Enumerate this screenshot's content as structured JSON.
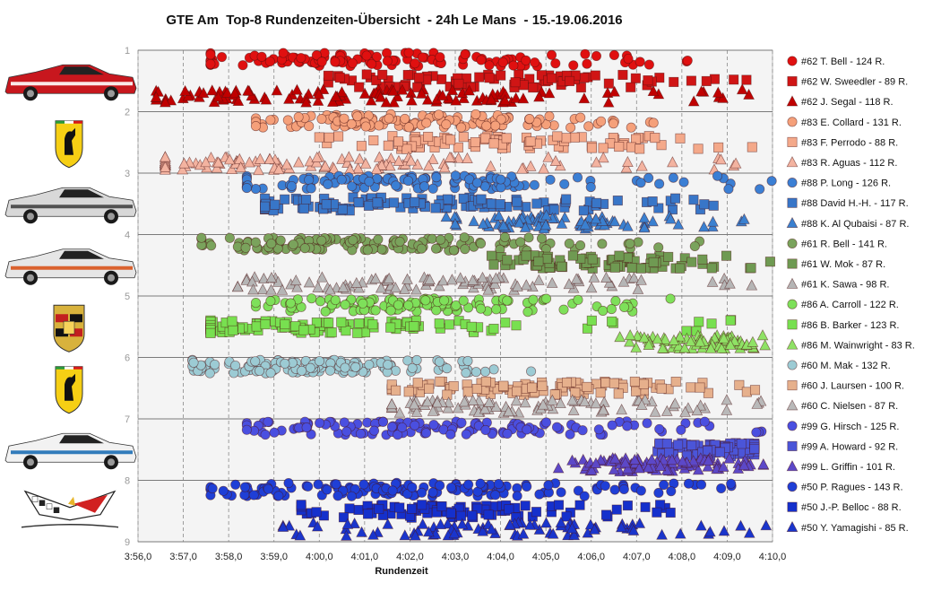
{
  "chart_data": {
    "type": "scatter",
    "title": "GTE Am  Top-8 Rundenzeiten-Übersicht  - 24h Le Mans  - 15.-19.06.2016",
    "xlabel": "Rundenzeit",
    "ylabel": "",
    "x_ticks": [
      "3:56,0",
      "3:57,0",
      "3:58,0",
      "3:59,0",
      "4:00,0",
      "4:01,0",
      "4:02,0",
      "4:03,0",
      "4:04,0",
      "4:05,0",
      "4:06,0",
      "4:07,0",
      "4:08,0",
      "4:09,0",
      "4:10,0"
    ],
    "xlim": [
      "3:56,0",
      "4:10,0"
    ],
    "y_ticks": [
      "1",
      "2",
      "3",
      "4",
      "5",
      "6",
      "7",
      "8",
      "9"
    ],
    "ylim": [
      1,
      9
    ],
    "grid": {
      "vertical": "dashed",
      "horizontal": "solid"
    },
    "legend_position": "right",
    "series": [
      {
        "name": "#62 T. Bell - 124 R.",
        "marker": "circle",
        "color": "#e01010",
        "row": 1.15,
        "xmin": "3:57,6",
        "xmax": "4:08,6",
        "count": 124,
        "peak": "4:01,0"
      },
      {
        "name": "#62 W. Sweedler - 89 R.",
        "marker": "square",
        "color": "#d01515",
        "row": 1.5,
        "xmin": "4:00,2",
        "xmax": "4:09,8",
        "count": 89,
        "peak": "4:03,5"
      },
      {
        "name": "#62 J. Segal - 118 R.",
        "marker": "triangle",
        "color": "#c00000",
        "row": 1.75,
        "xmin": "3:56,4",
        "xmax": "4:09,6",
        "count": 118,
        "peak": "4:00,5"
      },
      {
        "name": "#83 E. Collard - 131 R.",
        "marker": "circle",
        "color": "#f5a07a",
        "row": 2.15,
        "xmin": "3:58,6",
        "xmax": "4:08,2",
        "count": 131,
        "peak": "4:02,0"
      },
      {
        "name": "#83 F. Perrodo - 88 R.",
        "marker": "square",
        "color": "#f4a98a",
        "row": 2.5,
        "xmin": "4:00,0",
        "xmax": "4:09,8",
        "count": 88,
        "peak": "4:03,5"
      },
      {
        "name": "#83 R. Aguas - 112 R.",
        "marker": "triangle",
        "color": "#f3b3a0",
        "row": 2.85,
        "xmin": "3:56,6",
        "xmax": "4:09,6",
        "count": 112,
        "peak": "3:59,5"
      },
      {
        "name": "#88 P. Long - 126 R.",
        "marker": "circle",
        "color": "#3b7fd4",
        "row": 3.15,
        "xmin": "3:58,4",
        "xmax": "4:10,0",
        "count": 126,
        "peak": "4:01,5"
      },
      {
        "name": "#88 David H.-H. - 117 R.",
        "marker": "square",
        "color": "#3876c8",
        "row": 3.5,
        "xmin": "3:58,8",
        "xmax": "4:09,8",
        "count": 117,
        "peak": "4:01,5"
      },
      {
        "name": "#88 K. Al Qubaisi - 87 R.",
        "marker": "triangle",
        "color": "#3a80d0",
        "row": 3.8,
        "xmin": "4:02,8",
        "xmax": "4:10,0",
        "count": 87,
        "peak": "4:05,0"
      },
      {
        "name": "#61 R. Bell - 141 R.",
        "marker": "circle",
        "color": "#7aa35c",
        "row": 4.15,
        "xmin": "3:57,4",
        "xmax": "4:08,6",
        "count": 141,
        "peak": "4:01,0"
      },
      {
        "name": "#61 W. Mok - 87 R.",
        "marker": "square",
        "color": "#6f9a52",
        "row": 4.45,
        "xmin": "4:03,8",
        "xmax": "4:10,0",
        "count": 87,
        "peak": "4:06,5"
      },
      {
        "name": "#61 K. Sawa - 98 R.",
        "marker": "triangle",
        "color": "#b5b5b5",
        "row": 4.8,
        "xmin": "3:58,2",
        "xmax": "4:09,8",
        "count": 98,
        "peak": "4:02,5"
      },
      {
        "name": "#86 A. Carroll - 122 R.",
        "marker": "circle",
        "color": "#7ee05a",
        "row": 5.15,
        "xmin": "3:58,6",
        "xmax": "4:07,8",
        "count": 122,
        "peak": "4:02,0"
      },
      {
        "name": "#86 B. Barker - 123 R.",
        "marker": "square",
        "color": "#78e050",
        "row": 5.5,
        "xmin": "3:57,6",
        "xmax": "4:09,2",
        "count": 123,
        "peak": "3:59,5"
      },
      {
        "name": "#86 M. Wainwright - 83 R.",
        "marker": "triangle",
        "color": "#8fe265",
        "row": 5.75,
        "xmin": "4:06,6",
        "xmax": "4:10,0",
        "count": 83,
        "peak": "4:08,5"
      },
      {
        "name": "#60 M. Mak - 132 R.",
        "marker": "circle",
        "color": "#9ccbd4",
        "row": 6.15,
        "xmin": "3:57,2",
        "xmax": "4:04,8",
        "count": 132,
        "peak": "3:59,5"
      },
      {
        "name": "#60 J. Laursen - 100 R.",
        "marker": "square",
        "color": "#e6b08c",
        "row": 6.5,
        "xmin": "4:01,6",
        "xmax": "4:10,0",
        "count": 100,
        "peak": "4:04,5"
      },
      {
        "name": "#60 C. Nielsen - 87 R.",
        "marker": "triangle",
        "color": "#b9b9b9",
        "row": 6.8,
        "xmin": "4:01,6",
        "xmax": "4:09,8",
        "count": 87,
        "peak": "4:04,0"
      },
      {
        "name": "#99 G. Hirsch - 125 R.",
        "marker": "circle",
        "color": "#4a4fe0",
        "row": 7.15,
        "xmin": "3:58,4",
        "xmax": "4:10,0",
        "count": 125,
        "peak": "4:02,5"
      },
      {
        "name": "#99 A. Howard - 92 R.",
        "marker": "square",
        "color": "#4b55d8",
        "row": 7.5,
        "xmin": "4:07,4",
        "xmax": "4:09,6",
        "count": 92,
        "peak": "4:09,0"
      },
      {
        "name": "#99 L. Griffin - 101 R.",
        "marker": "triangle",
        "color": "#5c48c8",
        "row": 7.75,
        "xmin": "4:05,2",
        "xmax": "4:09,8",
        "count": 101,
        "peak": "4:07,5"
      },
      {
        "name": "#50 P. Ragues - 143 R.",
        "marker": "circle",
        "color": "#1f3fd6",
        "row": 8.15,
        "xmin": "3:57,6",
        "xmax": "4:09,6",
        "count": 143,
        "peak": "4:01,5"
      },
      {
        "name": "#50 J.-P. Belloc - 88 R.",
        "marker": "square",
        "color": "#1530cc",
        "row": 8.5,
        "xmin": "3:59,6",
        "xmax": "4:09,8",
        "count": 88,
        "peak": "4:03,0"
      },
      {
        "name": "#50 Y. Yamagishi - 85 R.",
        "marker": "triangle",
        "color": "#1a35cc",
        "row": 8.8,
        "xmin": "3:59,2",
        "xmax": "4:10,0",
        "count": 85,
        "peak": "4:04,0"
      }
    ]
  },
  "logos": [
    {
      "name": "ferrari-62-car-image",
      "kind": "car",
      "body": "#c8171e",
      "stripe": "#ffffff"
    },
    {
      "name": "ferrari-shield-logo",
      "kind": "shield"
    },
    {
      "name": "porsche-88-car-image",
      "kind": "car",
      "body": "#d8d8d8",
      "stripe": "#444444"
    },
    {
      "name": "ferrari-61-car-image",
      "kind": "car",
      "body": "#e6e6e6",
      "stripe": "#d8531a"
    },
    {
      "name": "porsche-crest-logo",
      "kind": "porsche"
    },
    {
      "name": "ferrari-shield-logo-2",
      "kind": "shield"
    },
    {
      "name": "aston-martin-99-car-image",
      "kind": "car",
      "body": "#f2f2f2",
      "stripe": "#1d6fb5"
    },
    {
      "name": "corvette-logo",
      "kind": "corvette"
    }
  ]
}
